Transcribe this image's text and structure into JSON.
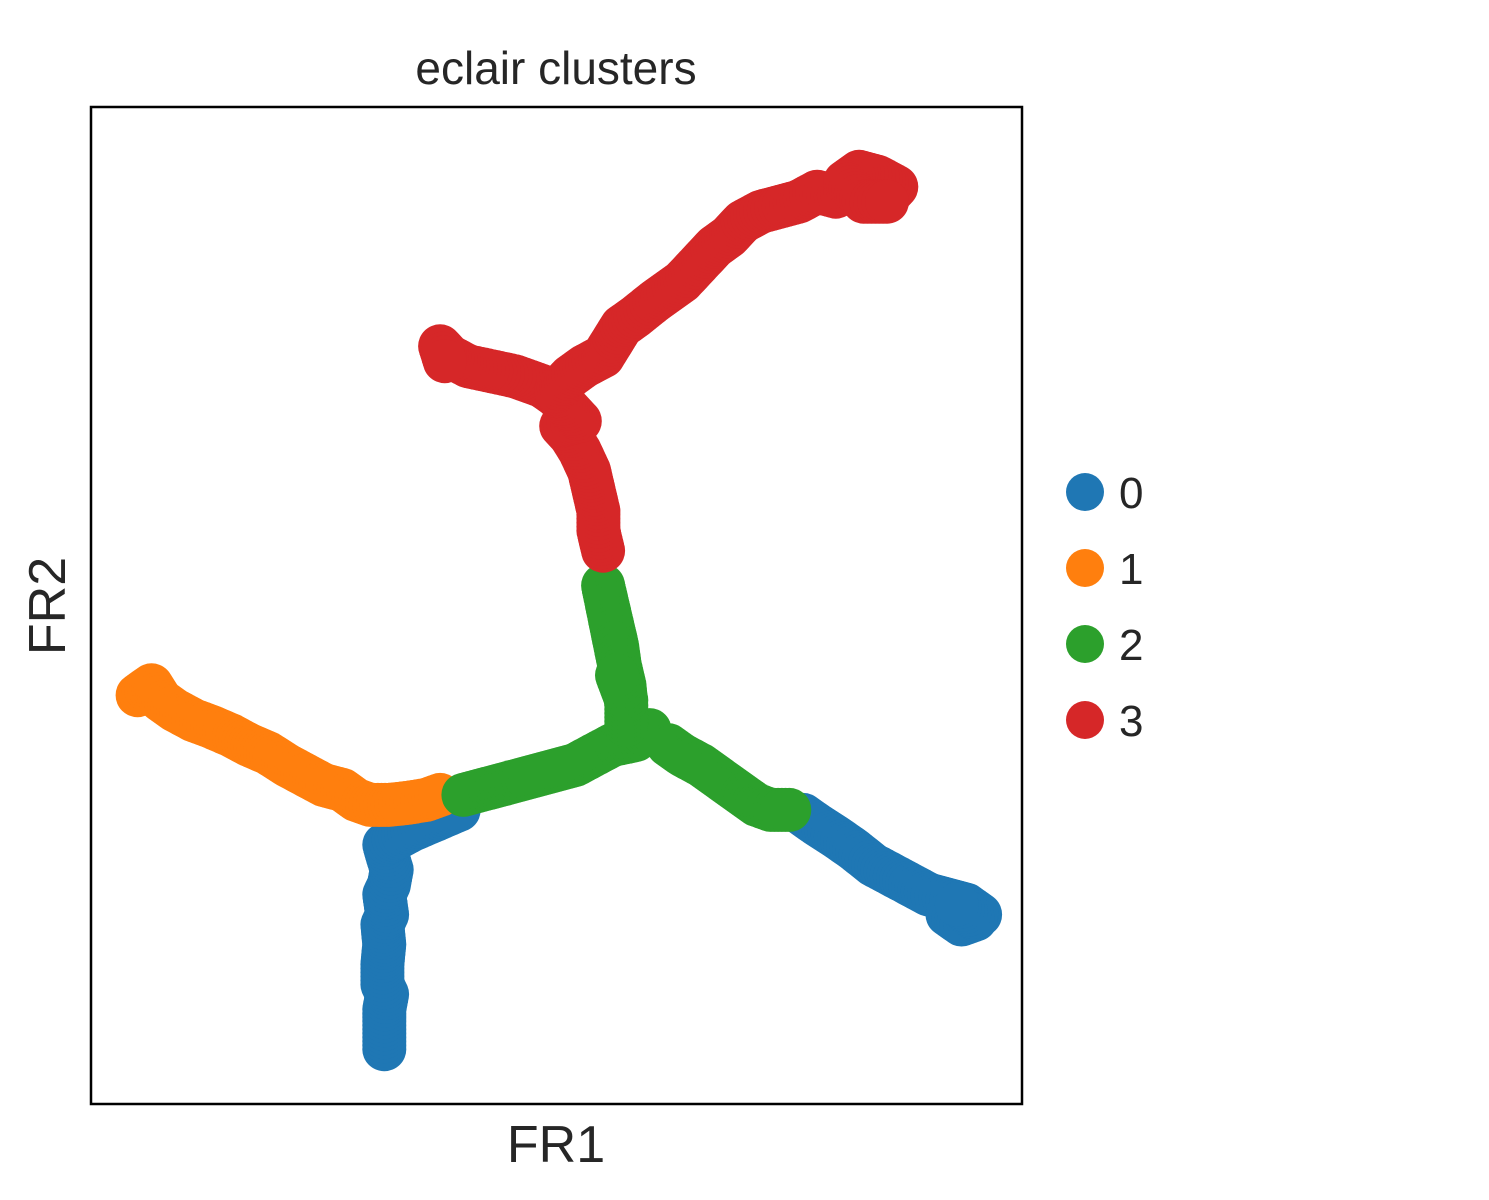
{
  "chart_data": {
    "type": "scatter",
    "title": "eclair clusters",
    "xlabel": "FR1",
    "ylabel": "FR2",
    "xlim": [
      0,
      100
    ],
    "ylim": [
      0,
      100
    ],
    "grid": false,
    "ticks": false,
    "legend": {
      "placement": "right-center",
      "entries": [
        {
          "label": "0",
          "color": "#1f77b4"
        },
        {
          "label": "1",
          "color": "#ff7f0e"
        },
        {
          "label": "2",
          "color": "#2ca02c"
        },
        {
          "label": "3",
          "color": "#d62728"
        }
      ]
    },
    "series": [
      {
        "name": "0",
        "color": "#1f77b4",
        "paths": [
          [
            [
              31.5,
              5.5
            ],
            [
              31.5,
              7.5
            ],
            [
              31.5,
              9.5
            ],
            [
              31.8,
              11.0
            ],
            [
              31.3,
              12.0
            ],
            [
              31.3,
              14.0
            ],
            [
              31.5,
              16.0
            ],
            [
              31.3,
              18.0
            ],
            [
              31.8,
              19.0
            ],
            [
              31.5,
              21.0
            ],
            [
              32.0,
              22.0
            ],
            [
              32.3,
              23.5
            ],
            [
              31.8,
              25.0
            ],
            [
              31.5,
              26.0
            ],
            [
              32.5,
              26.5
            ],
            [
              34.5,
              27.5
            ],
            [
              37.0,
              28.5
            ],
            [
              39.5,
              29.5
            ]
          ],
          [
            [
              76.5,
              29.0
            ],
            [
              78.0,
              28.0
            ],
            [
              80.0,
              26.8
            ],
            [
              82.0,
              25.5
            ],
            [
              84.0,
              24.0
            ],
            [
              86.0,
              23.0
            ],
            [
              88.0,
              22.0
            ],
            [
              90.0,
              21.0
            ],
            [
              92.0,
              20.5
            ],
            [
              94.0,
              20.0
            ],
            [
              95.5,
              19.0
            ],
            [
              92.0,
              19.0
            ],
            [
              93.5,
              18.0
            ],
            [
              95.0,
              18.5
            ],
            [
              93.0,
              20.0
            ]
          ]
        ]
      },
      {
        "name": "1",
        "color": "#ff7f0e",
        "paths": [
          [
            [
              5.0,
              41.0
            ],
            [
              6.5,
              42.0
            ],
            [
              7.5,
              40.5
            ],
            [
              9.0,
              39.5
            ],
            [
              11.0,
              38.5
            ],
            [
              13.0,
              37.8
            ],
            [
              15.0,
              37.0
            ],
            [
              17.0,
              36.0
            ],
            [
              19.0,
              35.2
            ],
            [
              21.0,
              34.0
            ],
            [
              23.0,
              33.0
            ],
            [
              25.0,
              32.0
            ],
            [
              27.0,
              31.5
            ],
            [
              28.5,
              30.5
            ],
            [
              30.0,
              30.0
            ],
            [
              32.0,
              30.0
            ],
            [
              34.0,
              30.2
            ],
            [
              36.0,
              30.5
            ],
            [
              37.5,
              31.0
            ]
          ]
        ]
      },
      {
        "name": "2",
        "color": "#2ca02c",
        "paths": [
          [
            [
              40.0,
              31.0
            ],
            [
              42.0,
              31.5
            ],
            [
              44.0,
              32.0
            ],
            [
              46.0,
              32.5
            ],
            [
              48.0,
              33.0
            ],
            [
              50.0,
              33.5
            ],
            [
              52.0,
              34.0
            ],
            [
              54.0,
              35.0
            ],
            [
              56.0,
              36.0
            ],
            [
              58.5,
              36.5
            ],
            [
              60.0,
              37.5
            ]
          ],
          [
            [
              57.5,
              38.0
            ],
            [
              57.5,
              40.0
            ],
            [
              57.3,
              42.0
            ],
            [
              56.8,
              44.0
            ],
            [
              56.5,
              46.0
            ],
            [
              56.0,
              48.0
            ],
            [
              55.5,
              50.0
            ],
            [
              55.0,
              52.0
            ],
            [
              57.5,
              40.5
            ],
            [
              56.5,
              43.0
            ]
          ],
          [
            [
              62.0,
              36.0
            ],
            [
              63.5,
              35.0
            ],
            [
              65.5,
              34.0
            ],
            [
              67.0,
              33.0
            ],
            [
              68.5,
              32.0
            ],
            [
              70.0,
              31.0
            ],
            [
              71.5,
              30.0
            ],
            [
              73.0,
              29.5
            ],
            [
              75.0,
              29.5
            ]
          ]
        ]
      },
      {
        "name": "3",
        "color": "#d62728",
        "paths": [
          [
            [
              55.0,
              55.5
            ],
            [
              54.5,
              57.5
            ],
            [
              54.5,
              59.5
            ],
            [
              54.0,
              61.5
            ],
            [
              53.5,
              63.5
            ],
            [
              52.5,
              65.5
            ],
            [
              51.5,
              67.0
            ],
            [
              50.5,
              68.0
            ],
            [
              52.5,
              68.5
            ],
            [
              51.0,
              70.0
            ],
            [
              50.0,
              71.0
            ]
          ],
          [
            [
              50.0,
              71.0
            ],
            [
              48.5,
              72.0
            ],
            [
              47.0,
              72.5
            ],
            [
              45.5,
              73.0
            ],
            [
              43.0,
              73.5
            ],
            [
              40.5,
              74.0
            ],
            [
              38.5,
              75.0
            ],
            [
              37.5,
              76.0
            ],
            [
              38.0,
              74.5
            ]
          ],
          [
            [
              50.0,
              71.5
            ],
            [
              51.5,
              73.0
            ],
            [
              53.0,
              74.0
            ],
            [
              55.0,
              75.0
            ],
            [
              56.0,
              76.5
            ],
            [
              57.0,
              78.0
            ],
            [
              58.5,
              79.0
            ],
            [
              60.5,
              80.5
            ],
            [
              62.0,
              81.5
            ],
            [
              63.5,
              82.5
            ],
            [
              65.5,
              84.5
            ],
            [
              67.0,
              86.0
            ],
            [
              68.5,
              87.0
            ],
            [
              70.0,
              88.5
            ],
            [
              72.0,
              89.5
            ],
            [
              74.0,
              90.0
            ],
            [
              76.0,
              90.5
            ],
            [
              78.0,
              91.5
            ],
            [
              80.0,
              91.0
            ],
            [
              82.0,
              92.0
            ],
            [
              84.0,
              91.5
            ],
            [
              85.5,
              91.0
            ],
            [
              86.5,
              92.0
            ],
            [
              84.5,
              93.0
            ],
            [
              82.5,
              93.5
            ],
            [
              81.0,
              92.5
            ],
            [
              83.0,
              90.5
            ],
            [
              85.5,
              90.5
            ]
          ]
        ]
      }
    ]
  }
}
